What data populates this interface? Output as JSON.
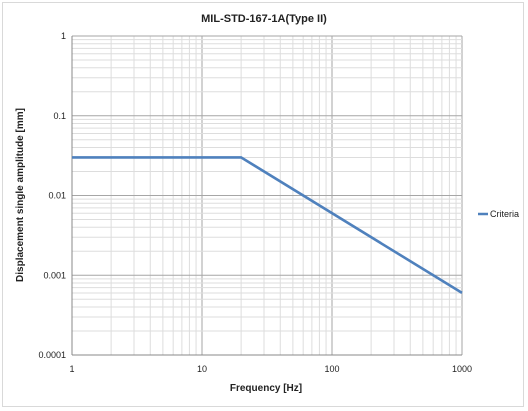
{
  "chart_data": {
    "type": "line",
    "title": "MIL-STD-167-1A(Type II)",
    "xlabel": "Frequency [Hz]",
    "ylabel": "Displacement single  amplitude [mm]",
    "x_scale": "log",
    "y_scale": "log",
    "xlim": [
      1,
      1000
    ],
    "ylim": [
      0.0001,
      1
    ],
    "x_ticks": [
      "1",
      "10",
      "100",
      "1000"
    ],
    "y_ticks": [
      "1",
      "0.1",
      "0.01",
      "0.001",
      "0.0001"
    ],
    "grid": true,
    "legend_position": "right",
    "series": [
      {
        "name": "Criteria",
        "color": "#4f81bd",
        "x": [
          1,
          20,
          1000
        ],
        "y": [
          0.03,
          0.03,
          0.0006
        ]
      }
    ]
  }
}
